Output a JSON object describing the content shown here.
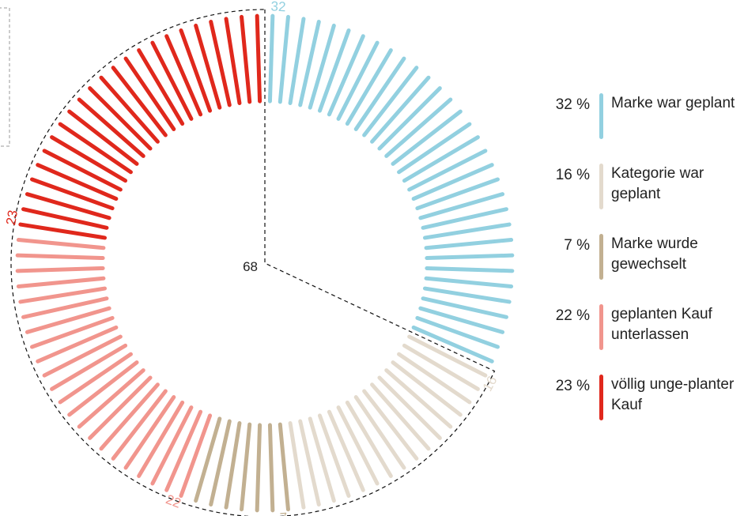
{
  "chart_data": {
    "type": "radial_bar",
    "center_value": 68,
    "categories": [
      "Marke war geplant",
      "Kategorie war geplant",
      "Marke wurde gewechselt",
      "geplanten Kauf unterlassen",
      "völlig unge-planter Kauf"
    ],
    "values": [
      32,
      16,
      7,
      22,
      23
    ],
    "value_labels": [
      "32 %",
      "16 %",
      "7 %",
      "22 %",
      "23 %"
    ],
    "colors": [
      "#92d0e0",
      "#e3dacd",
      "#c2b091",
      "#f1958d",
      "#e0281c"
    ]
  }
}
